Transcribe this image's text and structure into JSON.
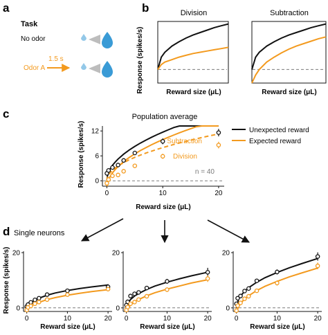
{
  "colors": {
    "black": "#111111",
    "orange": "#f39a1e",
    "dashed": "#7a7a7a",
    "drop": "#3a9bd6"
  },
  "panel_a": {
    "letter": "a",
    "task_title": "Task",
    "no_odor": "No odor",
    "odor_a": "Odor A",
    "delay": "1.5 s",
    "icons": [
      "water-drop-icon",
      "water-spray-icon"
    ]
  },
  "panel_b": {
    "letter": "b"
  },
  "panel_c": {
    "letter": "c"
  },
  "panel_d": {
    "letter": "d",
    "title": "Single neurons"
  },
  "chart_data": [
    {
      "id": "b-division",
      "type": "line",
      "title": "Division",
      "xlabel": "Reward size (μL)",
      "ylabel": "Response (spikes/s)",
      "xlim": [
        0,
        1
      ],
      "ylim": [
        0,
        1
      ],
      "baseline": 0.22,
      "series": [
        {
          "color": "black",
          "style": "solid",
          "x": [
            0,
            0.05,
            0.1,
            0.2,
            0.3,
            0.4,
            0.5,
            0.6,
            0.7,
            0.8,
            0.9,
            1.0
          ],
          "y": [
            0.22,
            0.42,
            0.5,
            0.6,
            0.67,
            0.73,
            0.78,
            0.82,
            0.86,
            0.9,
            0.93,
            0.96
          ]
        },
        {
          "color": "orange",
          "style": "solid",
          "x": [
            0,
            0.05,
            0.1,
            0.2,
            0.3,
            0.4,
            0.5,
            0.6,
            0.7,
            0.8,
            0.9,
            1.0
          ],
          "y": [
            0.22,
            0.3,
            0.34,
            0.38,
            0.42,
            0.45,
            0.48,
            0.5,
            0.52,
            0.54,
            0.56,
            0.58
          ]
        }
      ]
    },
    {
      "id": "b-subtraction",
      "type": "line",
      "title": "Subtraction",
      "xlabel": "Reward size (μL)",
      "ylabel": "",
      "xlim": [
        0,
        1
      ],
      "ylim": [
        0,
        1
      ],
      "baseline": 0.22,
      "series": [
        {
          "color": "black",
          "style": "solid",
          "x": [
            0,
            0.05,
            0.1,
            0.2,
            0.3,
            0.4,
            0.5,
            0.6,
            0.7,
            0.8,
            0.9,
            1.0
          ],
          "y": [
            0.22,
            0.42,
            0.5,
            0.6,
            0.67,
            0.73,
            0.78,
            0.82,
            0.86,
            0.9,
            0.93,
            0.96
          ]
        },
        {
          "color": "orange",
          "style": "solid",
          "x": [
            0,
            0.05,
            0.1,
            0.2,
            0.3,
            0.4,
            0.5,
            0.6,
            0.7,
            0.8,
            0.9,
            1.0
          ],
          "y": [
            0.0,
            0.13,
            0.22,
            0.34,
            0.42,
            0.49,
            0.55,
            0.6,
            0.64,
            0.68,
            0.72,
            0.75
          ]
        }
      ]
    },
    {
      "id": "c-population",
      "type": "line",
      "title": "Population average",
      "xlabel": "Reward size (μL)",
      "ylabel": "Response (spikes/s)",
      "xlim": [
        -0.8,
        21
      ],
      "ylim": [
        -1.3,
        13.2
      ],
      "xticks": [
        0,
        10,
        20
      ],
      "yticks": [
        0,
        6,
        12
      ],
      "baseline": 0,
      "legend": {
        "position": "top-right",
        "entries": [
          {
            "name": "Unexpected reward",
            "color": "black"
          },
          {
            "name": "Expected reward",
            "color": "orange"
          }
        ]
      },
      "annotations": [
        {
          "text": "Subtraction",
          "color": "orange"
        },
        {
          "text": "Division",
          "color": "orange"
        },
        {
          "text": "n = 40",
          "color": "gray"
        }
      ],
      "series": [
        {
          "name": "Unexpected reward",
          "color": "black",
          "style": "solid",
          "x": [
            0,
            0.1,
            0.3,
            0.6,
            1,
            1.5,
            2,
            3,
            4,
            5,
            6,
            7,
            8,
            9,
            10,
            11,
            12,
            13,
            14,
            15,
            16,
            17,
            18,
            19,
            20
          ],
          "y": [
            0,
            1.17,
            2.03,
            2.87,
            3.71,
            4.54,
            5.24,
            6.42,
            7.41,
            8.29,
            9.08,
            9.8,
            10.48,
            11.12,
            11.72,
            12.29,
            12.84,
            13.36,
            13.87,
            14.35,
            14.82,
            15.27,
            15.71,
            16.13,
            16.55
          ]
        },
        {
          "name": "Subtraction",
          "color": "orange",
          "style": "solid",
          "x": [
            0,
            0.1,
            0.3,
            0.6,
            1,
            1.5,
            2,
            3,
            4,
            5,
            6,
            7,
            8,
            9,
            10,
            11,
            12,
            13,
            14,
            15,
            16,
            17,
            18,
            19,
            20
          ],
          "y": [
            -1.8,
            -0.63,
            0.23,
            1.07,
            1.91,
            2.74,
            3.44,
            4.62,
            5.61,
            6.49,
            7.28,
            8.0,
            8.68,
            9.32,
            9.92,
            10.49,
            11.04,
            11.56,
            12.07,
            12.55,
            13.02,
            13.47,
            13.91,
            14.33,
            14.75
          ]
        },
        {
          "name": "Division",
          "color": "orange",
          "style": "dashed",
          "x": [
            0,
            0.1,
            0.3,
            0.6,
            1,
            1.5,
            2,
            3,
            4,
            5,
            6,
            7,
            8,
            9,
            10,
            11,
            12,
            13,
            14,
            15,
            16,
            17,
            18,
            19,
            20
          ],
          "y": [
            0,
            0.8,
            1.38,
            1.95,
            2.53,
            3.09,
            3.57,
            4.37,
            5.05,
            5.65,
            6.19,
            6.68,
            7.14,
            7.58,
            7.99,
            8.38,
            8.75,
            9.11,
            9.45,
            9.78,
            10.1,
            10.41,
            10.71,
            11.0,
            11.28
          ]
        }
      ],
      "points": [
        {
          "color": "black",
          "x": [
            0,
            0.3,
            1,
            2,
            3,
            5,
            10,
            20
          ],
          "y": [
            1.8,
            2.5,
            3.2,
            3.8,
            4.9,
            6.7,
            9.5,
            11.6
          ],
          "err": [
            0.5,
            0.5,
            0.5,
            0.5,
            0.5,
            0.5,
            0.7,
            0.9
          ]
        },
        {
          "color": "orange",
          "x": [
            0,
            0.3,
            1,
            2,
            3,
            5,
            10,
            20
          ],
          "y": [
            -0.6,
            0.3,
            1.2,
            1.4,
            2.3,
            3.6,
            5.9,
            8.6
          ],
          "err": [
            0.5,
            0.5,
            0.5,
            0.5,
            0.5,
            0.5,
            0.6,
            0.8
          ]
        }
      ]
    },
    {
      "id": "d-neuron-1",
      "type": "line",
      "title": "",
      "xlabel": "Reward size (μL)",
      "ylabel": "Response (spikes/s)",
      "xlim": [
        -0.8,
        21
      ],
      "ylim": [
        -1.3,
        20.5
      ],
      "xticks": [
        0,
        10,
        20
      ],
      "yticks": [
        0,
        20
      ],
      "baseline": 0,
      "series": [
        {
          "color": "black",
          "style": "solid",
          "x": [
            0,
            0.5,
            1,
            2,
            3,
            5,
            7,
            10,
            13,
            16,
            20
          ],
          "y": [
            0,
            1.2,
            1.9,
            2.8,
            3.5,
            4.6,
            5.4,
            6.3,
            7.0,
            7.6,
            8.3
          ]
        },
        {
          "color": "orange",
          "style": "solid",
          "x": [
            0,
            0.5,
            1,
            2,
            3,
            5,
            7,
            10,
            13,
            16,
            20
          ],
          "y": [
            -1.0,
            0.0,
            0.6,
            1.4,
            2.0,
            3.0,
            3.7,
            4.6,
            5.3,
            5.9,
            6.6
          ]
        }
      ],
      "points": [
        {
          "color": "black",
          "x": [
            0,
            0.3,
            1,
            2,
            3,
            5,
            10,
            20
          ],
          "y": [
            0.5,
            1.2,
            2.0,
            2.9,
            3.5,
            4.8,
            6.2,
            7.6
          ],
          "err": [
            0.5,
            0.5,
            0.5,
            0.5,
            0.5,
            0.5,
            0.6,
            1.0
          ]
        },
        {
          "color": "orange",
          "x": [
            0,
            0.3,
            1,
            2,
            3,
            5,
            10,
            20
          ],
          "y": [
            -0.8,
            0.2,
            0.7,
            1.5,
            2.1,
            3.0,
            4.8,
            6.8
          ],
          "err": [
            0.5,
            0.5,
            0.5,
            0.5,
            0.5,
            0.5,
            0.6,
            0.8
          ]
        }
      ]
    },
    {
      "id": "d-neuron-2",
      "type": "line",
      "title": "",
      "xlabel": "Reward size (μL)",
      "ylabel": "",
      "xlim": [
        -0.8,
        21
      ],
      "ylim": [
        -1.3,
        20.5
      ],
      "xticks": [
        0,
        10,
        20
      ],
      "yticks": [
        0,
        20
      ],
      "baseline": 0,
      "series": [
        {
          "color": "black",
          "style": "solid",
          "x": [
            0,
            0.5,
            1,
            2,
            3,
            5,
            7,
            10,
            13,
            16,
            20
          ],
          "y": [
            0,
            2.0,
            3.0,
            4.3,
            5.2,
            6.7,
            7.9,
            9.3,
            10.5,
            11.6,
            12.9
          ]
        },
        {
          "color": "orange",
          "style": "solid",
          "x": [
            0,
            0.5,
            1,
            2,
            3,
            5,
            7,
            10,
            13,
            16,
            20
          ],
          "y": [
            -1.8,
            0.0,
            1.0,
            2.2,
            3.0,
            4.4,
            5.5,
            6.8,
            7.9,
            9.0,
            10.2
          ]
        }
      ],
      "points": [
        {
          "color": "black",
          "x": [
            0,
            0.3,
            1,
            2,
            3,
            5,
            10,
            20
          ],
          "y": [
            1.0,
            2.2,
            4.3,
            5.1,
            5.6,
            7.2,
            9.6,
            12.9
          ],
          "err": [
            0.6,
            0.6,
            0.6,
            0.6,
            0.6,
            0.7,
            0.9,
            1.6
          ]
        },
        {
          "color": "orange",
          "x": [
            0,
            0.3,
            1,
            2,
            3,
            5,
            10,
            20
          ],
          "y": [
            -0.8,
            0.3,
            1.5,
            2.1,
            3.0,
            4.2,
            6.6,
            10.6
          ],
          "err": [
            0.6,
            0.6,
            0.6,
            0.6,
            0.6,
            0.7,
            0.8,
            1.2
          ]
        }
      ]
    },
    {
      "id": "d-neuron-3",
      "type": "line",
      "title": "",
      "xlabel": "Reward size (μL)",
      "ylabel": "",
      "xlim": [
        -0.8,
        21
      ],
      "ylim": [
        -1.3,
        20.5
      ],
      "xticks": [
        0,
        10,
        20
      ],
      "yticks": [
        0,
        20
      ],
      "baseline": 0,
      "series": [
        {
          "color": "black",
          "style": "solid",
          "x": [
            0,
            0.5,
            1,
            2,
            3,
            5,
            7,
            10,
            13,
            16,
            20
          ],
          "y": [
            0,
            3.0,
            4.3,
            6.0,
            7.3,
            9.3,
            10.9,
            12.8,
            14.5,
            16.0,
            17.9
          ]
        },
        {
          "color": "orange",
          "style": "solid",
          "x": [
            0,
            0.5,
            1,
            2,
            3,
            5,
            7,
            10,
            13,
            16,
            20
          ],
          "y": [
            -2.5,
            0.3,
            1.6,
            3.2,
            4.4,
            6.3,
            7.8,
            9.6,
            11.2,
            12.6,
            14.4
          ]
        }
      ],
      "points": [
        {
          "color": "black",
          "x": [
            0,
            0.3,
            1,
            2,
            3,
            5,
            10,
            20
          ],
          "y": [
            1.5,
            3.5,
            4.3,
            6.1,
            7.0,
            9.8,
            13.0,
            18.6
          ],
          "err": [
            0.6,
            0.6,
            0.6,
            0.6,
            0.6,
            0.7,
            0.9,
            1.5
          ]
        },
        {
          "color": "orange",
          "x": [
            0,
            0.3,
            1,
            2,
            3,
            5,
            10,
            20
          ],
          "y": [
            -1.0,
            0.8,
            1.8,
            3.3,
            4.2,
            6.2,
            9.0,
            15.2
          ],
          "err": [
            0.6,
            0.6,
            0.6,
            0.6,
            0.6,
            0.7,
            0.9,
            1.2
          ]
        }
      ]
    }
  ]
}
